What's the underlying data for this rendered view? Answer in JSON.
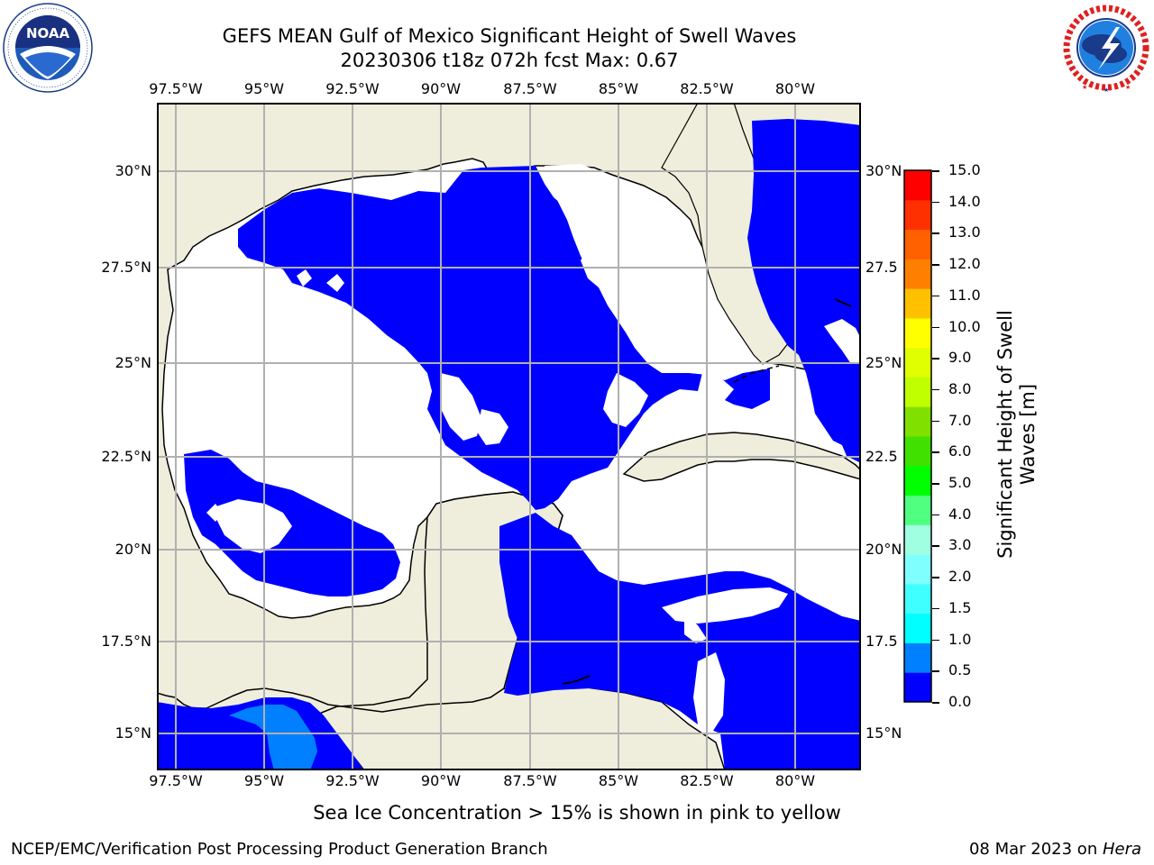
{
  "header": {
    "title_line1": "GEFS MEAN Gulf of Mexico Significant Height of Swell Waves",
    "title_line2": "20230306 t18z 072h fcst   Max: 0.67"
  },
  "logos": {
    "left": {
      "name": "noaa-logo",
      "text": "NOAA",
      "ring_text": "NATIONAL OCEANIC AND ATMOSPHERIC ADMINISTRATION · U.S. DEPARTMENT OF COMMERCE"
    },
    "right": {
      "name": "nws-logo",
      "ring_text": "NATIONAL WEATHER SERVICE"
    }
  },
  "map": {
    "lon_ticks": [
      "97.5°W",
      "95°W",
      "92.5°W",
      "90°W",
      "87.5°W",
      "85°W",
      "82.5°W",
      "80°W"
    ],
    "lat_ticks": [
      "30°N",
      "27.5°N",
      "25°N",
      "22.5°N",
      "20°N",
      "17.5°N",
      "15°N"
    ],
    "lat_ticks_right": [
      "30°N",
      "27.5",
      "25°N",
      "22.5",
      "20°N",
      "17.5",
      "15°N"
    ],
    "colors": {
      "land": "#efeedc",
      "ocean_low": "#0000ff",
      "ocean_mid": "#0080ff",
      "grid": "#b0b0b0"
    }
  },
  "colorbar": {
    "label": "Significant Height of Swell Waves [m]",
    "label_line1": "Significant Height of Swell",
    "label_line2": "Waves [m]",
    "ticks": [
      "15.0",
      "14.0",
      "13.0",
      "12.0",
      "11.0",
      "10.0",
      "9.0",
      "8.0",
      "7.0",
      "6.0",
      "5.0",
      "4.0",
      "3.0",
      "2.0",
      "1.5",
      "1.0",
      "0.5",
      "0.0"
    ],
    "colors_bottom_to_top": [
      "#0000ff",
      "#0080ff",
      "#00ffff",
      "#40ffff",
      "#80ffff",
      "#a0ffe0",
      "#50ff80",
      "#00ff00",
      "#40e000",
      "#80e000",
      "#c0ff00",
      "#e0ff00",
      "#ffff00",
      "#ffc000",
      "#ff8000",
      "#ff6000",
      "#ff3000",
      "#ff0000"
    ]
  },
  "note": "Sea Ice Concentration > 15% is shown in pink to yellow",
  "footer": {
    "left": "NCEP/EMC/Verification Post Processing Product Generation Branch",
    "right_date": "08 Mar 2023 on ",
    "right_host": "Hera"
  }
}
